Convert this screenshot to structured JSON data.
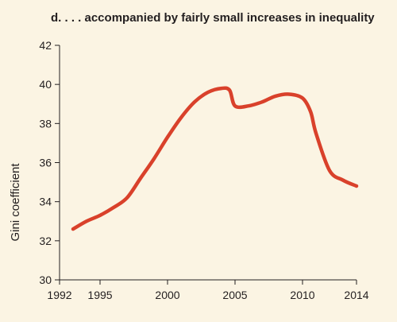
{
  "chart_data": {
    "type": "line",
    "title": "d. . . . accompanied by fairly small increases in inequality",
    "xlabel": "",
    "ylabel": "Gini coefficient",
    "xlim": [
      1992,
      2014
    ],
    "ylim": [
      30,
      42
    ],
    "xticks": [
      1992,
      1995,
      2000,
      2005,
      2010,
      2014
    ],
    "yticks": [
      30,
      32,
      34,
      36,
      38,
      40,
      42
    ],
    "grid": false,
    "legend": "none",
    "series": [
      {
        "color": "#d9412b",
        "x": [
          1993,
          1994,
          1995,
          1996,
          1997,
          1998,
          1999,
          2000,
          2001,
          2002,
          2003,
          2004,
          2004.6,
          2005,
          2006,
          2007,
          2008,
          2009,
          2010,
          2010.6,
          2011,
          2012,
          2013,
          2014
        ],
        "y": [
          32.6,
          33.0,
          33.3,
          33.7,
          34.2,
          35.2,
          36.2,
          37.3,
          38.3,
          39.1,
          39.6,
          39.8,
          39.7,
          38.9,
          38.9,
          39.1,
          39.4,
          39.5,
          39.3,
          38.6,
          37.5,
          35.6,
          35.1,
          34.8
        ]
      }
    ]
  }
}
